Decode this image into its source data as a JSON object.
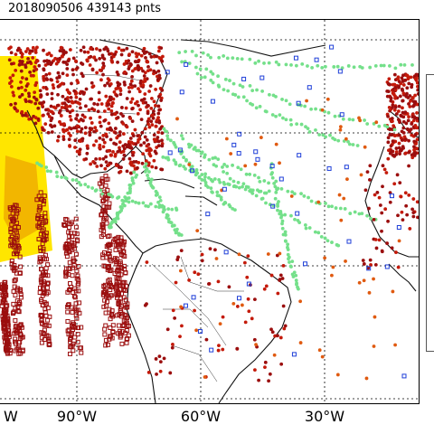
{
  "title": "2018090506 439143 pnts",
  "map": {
    "projection": "equirectangular",
    "gridlines": true,
    "colors": {
      "coastline": "#111111",
      "borders": "#333333",
      "grid": "#000000",
      "dark_red": "#9b0e0e",
      "red": "#c41a0a",
      "orange": "#e05a10",
      "light_green": "#74e08a",
      "blue": "#1f3fd8",
      "yellow": "#ffe600",
      "gold": "#f2b600"
    },
    "lon_ticks": [
      {
        "lon": -120,
        "label": "W"
      },
      {
        "lon": -90,
        "label": "90°W"
      },
      {
        "lon": -60,
        "label": "60°W"
      },
      {
        "lon": -30,
        "label": "30°W"
      }
    ]
  }
}
